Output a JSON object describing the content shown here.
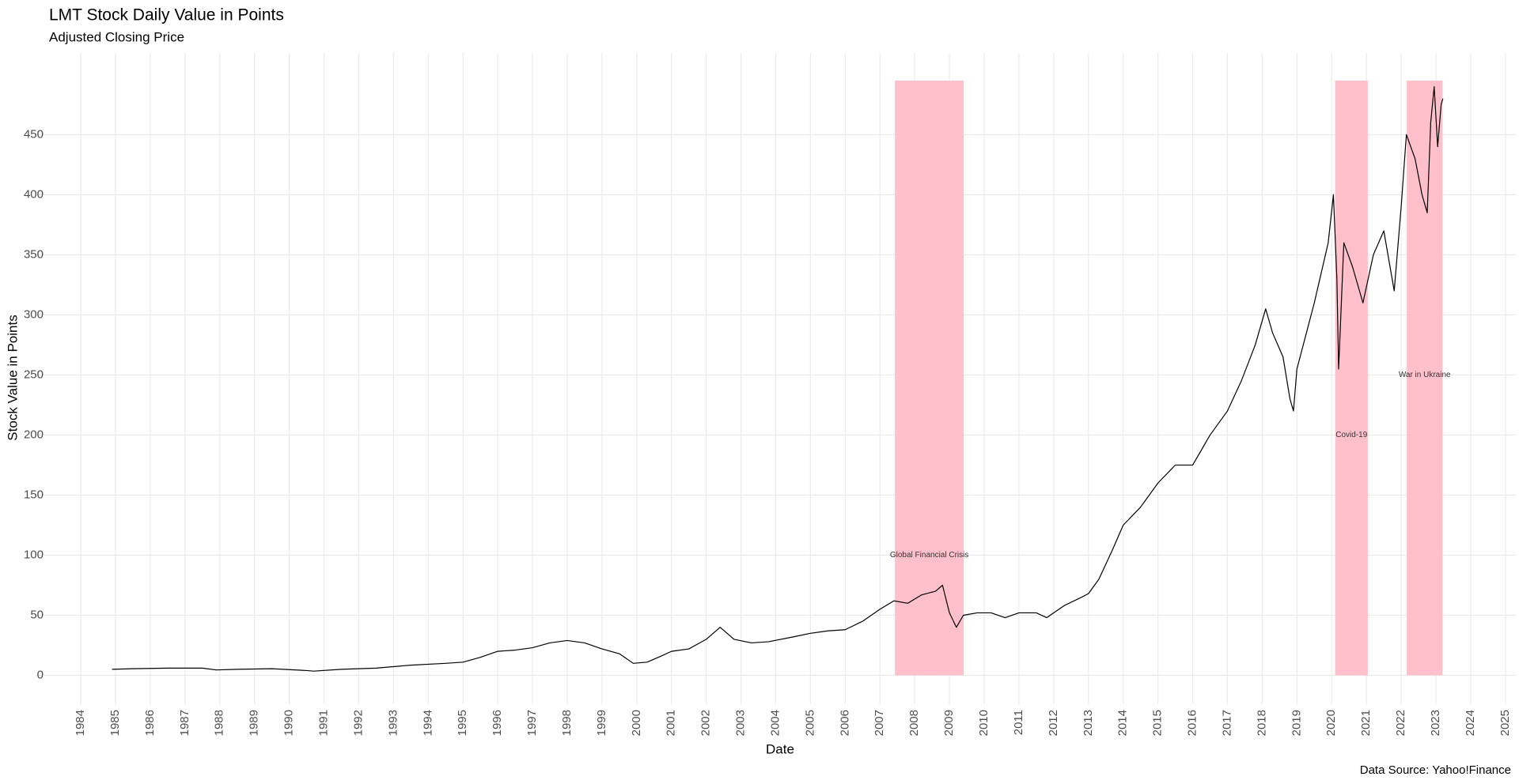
{
  "chart_data": {
    "type": "line",
    "title": "LMT Stock Daily Value in Points",
    "subtitle": "Adjusted Closing Price",
    "x_label": "Date",
    "y_label": "Stock Value in Points",
    "caption": "Data Source: Yahoo!Finance",
    "x": [
      1984.9,
      1985.5,
      1986.5,
      1987.5,
      1987.9,
      1988.5,
      1989.5,
      1990.5,
      1990.7,
      1991.5,
      1992.5,
      1993.5,
      1994.5,
      1995.0,
      1995.5,
      1996.0,
      1996.5,
      1997.0,
      1997.5,
      1998.0,
      1998.5,
      1999.0,
      1999.5,
      1999.9,
      2000.3,
      2000.7,
      2001.0,
      2001.5,
      2002.0,
      2002.4,
      2002.8,
      2003.3,
      2003.8,
      2004.5,
      2005.0,
      2005.5,
      2006.0,
      2006.5,
      2007.0,
      2007.4,
      2007.8,
      2008.2,
      2008.6,
      2008.8,
      2009.0,
      2009.2,
      2009.4,
      2009.8,
      2010.2,
      2010.6,
      2011.0,
      2011.5,
      2011.8,
      2012.3,
      2012.8,
      2013.0,
      2013.3,
      2013.7,
      2014.0,
      2014.5,
      2015.0,
      2015.5,
      2016.0,
      2016.5,
      2017.0,
      2017.4,
      2017.8,
      2018.1,
      2018.3,
      2018.6,
      2018.8,
      2018.9,
      2019.0,
      2019.5,
      2019.9,
      2020.05,
      2020.15,
      2020.2,
      2020.35,
      2020.6,
      2020.9,
      2021.2,
      2021.5,
      2021.8,
      2022.0,
      2022.15,
      2022.4,
      2022.6,
      2022.75,
      2022.85,
      2022.95,
      2023.05,
      2023.15,
      2023.2
    ],
    "series": [
      {
        "color": "#000000",
        "values": [
          5,
          5.5,
          6,
          6,
          4.5,
          5,
          5.5,
          4,
          3.5,
          5,
          6,
          8.5,
          10,
          11,
          15,
          20,
          21,
          23,
          27,
          29,
          27,
          22,
          18,
          10,
          11,
          16,
          20,
          22,
          30,
          40,
          30,
          27,
          28,
          32,
          35,
          37,
          38,
          45,
          55,
          62,
          60,
          67,
          70,
          75,
          52,
          40,
          50,
          52,
          52,
          48,
          52,
          52,
          48,
          58,
          65,
          68,
          80,
          105,
          125,
          140,
          160,
          175,
          175,
          200,
          220,
          245,
          275,
          305,
          285,
          265,
          230,
          220,
          255,
          310,
          360,
          400,
          330,
          255,
          360,
          340,
          310,
          350,
          370,
          320,
          390,
          450,
          430,
          400,
          385,
          460,
          490,
          440,
          475,
          480
        ]
      }
    ],
    "shaded_periods": [
      {
        "start": 2007.43,
        "end": 2009.41,
        "ymax": 495,
        "label": "Global Financial Crisis",
        "label_y": 100
      },
      {
        "start": 2020.1,
        "end": 2021.04,
        "ymax": 495,
        "label": "Covid-19",
        "label_y": 200
      },
      {
        "start": 2022.16,
        "end": 2023.19,
        "ymax": 495,
        "label": "War in Ukraine",
        "label_y": 250
      }
    ],
    "shade_color": "#ffc0cb",
    "xlim": [
      1982.7,
      2025.3
    ],
    "xticks": [
      1984,
      1985,
      1986,
      1987,
      1988,
      1989,
      1990,
      1991,
      1992,
      1993,
      1994,
      1995,
      1996,
      1997,
      1998,
      1999,
      2000,
      2001,
      2002,
      2003,
      2004,
      2005,
      2006,
      2007,
      2008,
      2009,
      2010,
      2011,
      2012,
      2013,
      2014,
      2015,
      2016,
      2017,
      2018,
      2019,
      2020,
      2021,
      2022,
      2023,
      2024,
      2025
    ],
    "ylim": [
      -24,
      518
    ],
    "yticks": [
      0,
      50,
      100,
      150,
      200,
      250,
      300,
      350,
      400,
      450
    ],
    "grid": true
  }
}
